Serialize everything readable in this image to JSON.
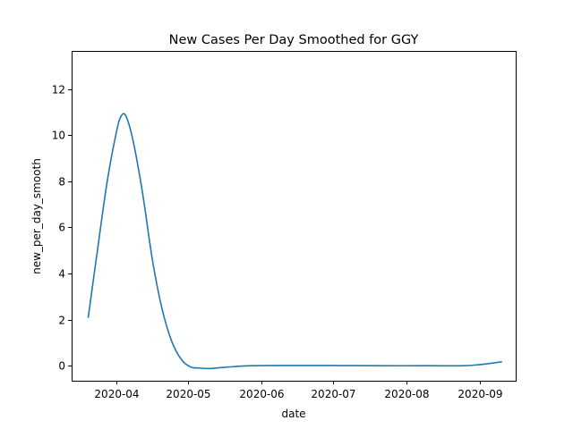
{
  "chart_data": {
    "type": "line",
    "title": "New Cases Per Day Smoothed for GGY",
    "xlabel": "date",
    "ylabel": "new_per_day_smooth",
    "ylim": [
      -0.65,
      13.65
    ],
    "xlim_dates": [
      "2020-03-13",
      "2020-09-16"
    ],
    "grid": false,
    "x_tick_labels": [
      "2020-04",
      "2020-05",
      "2020-06",
      "2020-07",
      "2020-08",
      "2020-09"
    ],
    "x_tick_dates": [
      "2020-04-01",
      "2020-05-01",
      "2020-06-01",
      "2020-07-01",
      "2020-08-01",
      "2020-09-01"
    ],
    "y_tick_labels": [
      "0",
      "2",
      "4",
      "6",
      "8",
      "10",
      "12"
    ],
    "y_tick_values": [
      0,
      2,
      4,
      6,
      8,
      10,
      12
    ],
    "series": [
      {
        "name": "new_per_day_smooth",
        "color": "#1f77b4",
        "points": [
          [
            "2020-03-20",
            2.1
          ],
          [
            "2020-03-24",
            5.1
          ],
          [
            "2020-03-28",
            8.0
          ],
          [
            "2020-04-01",
            10.2
          ],
          [
            "2020-04-03",
            10.85
          ],
          [
            "2020-04-05",
            10.8
          ],
          [
            "2020-04-08",
            9.7
          ],
          [
            "2020-04-12",
            7.4
          ],
          [
            "2020-04-16",
            4.6
          ],
          [
            "2020-04-20",
            2.5
          ],
          [
            "2020-04-24",
            1.1
          ],
          [
            "2020-04-28",
            0.3
          ],
          [
            "2020-05-02",
            -0.05
          ],
          [
            "2020-05-06",
            -0.1
          ],
          [
            "2020-05-10",
            -0.12
          ],
          [
            "2020-05-15",
            -0.08
          ],
          [
            "2020-05-20",
            -0.04
          ],
          [
            "2020-05-28",
            0.0
          ],
          [
            "2020-06-10",
            0.01
          ],
          [
            "2020-07-01",
            0.01
          ],
          [
            "2020-07-20",
            0.0
          ],
          [
            "2020-08-10",
            0.0
          ],
          [
            "2020-08-25",
            0.0
          ],
          [
            "2020-09-01",
            0.05
          ],
          [
            "2020-09-05",
            0.1
          ],
          [
            "2020-09-10",
            0.17
          ]
        ]
      }
    ]
  }
}
